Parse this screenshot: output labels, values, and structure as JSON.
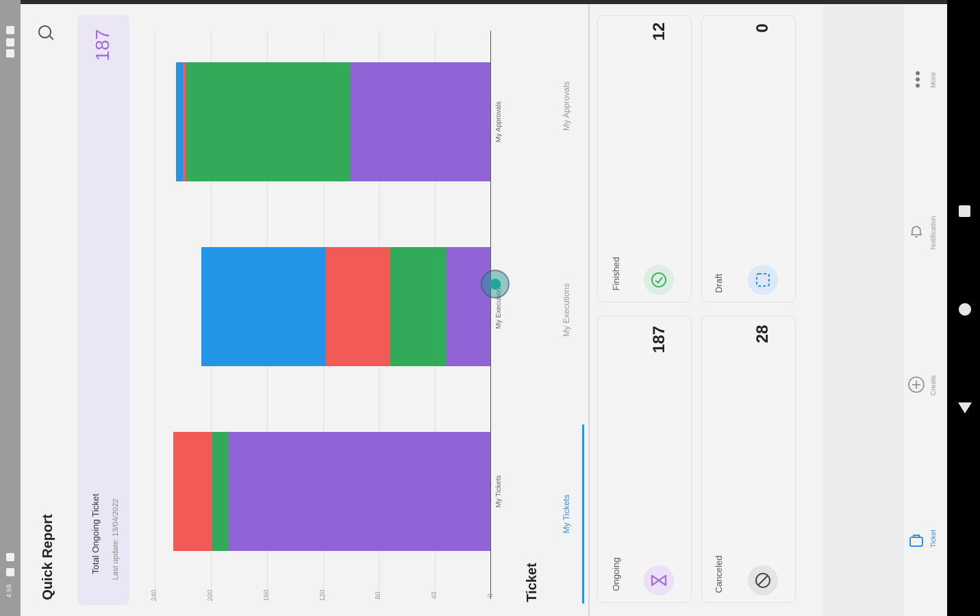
{
  "status_bar": {
    "time": "4:59"
  },
  "header": {
    "title": "Quick Report"
  },
  "total_card": {
    "title": "Total Ongoing Ticket",
    "subtitle": "Last update: 13/04/2022",
    "value": "187",
    "accent": "#a36bdc"
  },
  "chart_data": {
    "type": "bar",
    "orientation": "horizontal-stacked",
    "categories": [
      "My Tickets",
      "My Executions",
      "My Approvals"
    ],
    "series": [
      {
        "color": "#9063d6",
        "values": [
          187,
          32,
          100
        ]
      },
      {
        "color": "#31ab5a",
        "values": [
          12,
          40,
          118
        ]
      },
      {
        "color": "#f25b55",
        "values": [
          28,
          46,
          2
        ]
      },
      {
        "color": "#2495e6",
        "values": [
          0,
          89,
          5
        ]
      }
    ],
    "ticks": [
      "0",
      "40",
      "80",
      "120",
      "160",
      "200",
      "240"
    ],
    "xlim": [
      0,
      240
    ],
    "grid": true
  },
  "ticket_section": {
    "title": "Ticket",
    "tabs": [
      {
        "label": "My Tickets",
        "active": true
      },
      {
        "label": "My Executions",
        "active": false
      },
      {
        "label": "My Approvals",
        "active": false
      }
    ]
  },
  "status_cards": {
    "ongoing": {
      "label": "Ongoing",
      "value": "187",
      "icon": "hourglass-icon",
      "color": "#a36bdc"
    },
    "finished": {
      "label": "Finished",
      "value": "12",
      "icon": "check-circle-icon",
      "color": "#3fae63"
    },
    "canceled": {
      "label": "Canceled",
      "value": "28",
      "icon": "ban-icon",
      "color": "#555555"
    },
    "draft": {
      "label": "Draft",
      "value": "0",
      "icon": "dashed-square-icon",
      "color": "#2f8fe8"
    }
  },
  "bottom_nav": [
    {
      "label": "Ticket",
      "icon": "ticket-icon",
      "active": true
    },
    {
      "label": "Create",
      "icon": "plus-circle-icon",
      "active": false
    },
    {
      "label": "Notification",
      "icon": "bell-icon",
      "active": false
    },
    {
      "label": "More",
      "icon": "more-dots-icon",
      "active": false
    }
  ]
}
